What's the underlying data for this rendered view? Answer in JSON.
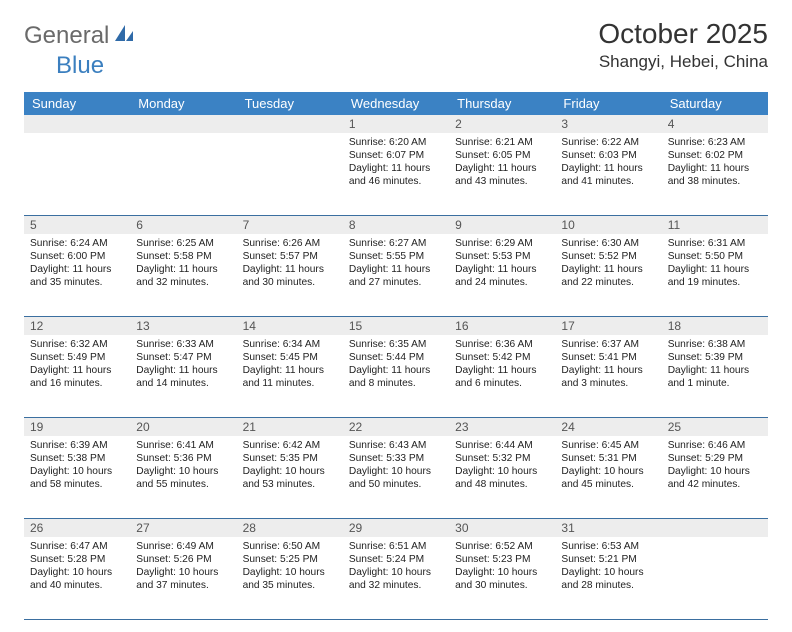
{
  "logo": {
    "part1": "General",
    "part2": "Blue"
  },
  "title": "October 2025",
  "location": "Shangyi, Hebei, China",
  "colors": {
    "header_bg": "#3b82c4",
    "header_text": "#ffffff",
    "daynum_bg": "#ededed",
    "row_border": "#3b6fa0",
    "logo_gray": "#6a6a6a",
    "logo_blue": "#3b7fbf"
  },
  "day_headers": [
    "Sunday",
    "Monday",
    "Tuesday",
    "Wednesday",
    "Thursday",
    "Friday",
    "Saturday"
  ],
  "weeks": [
    [
      {
        "n": "",
        "sr": "",
        "ss": "",
        "dl1": "",
        "dl2": ""
      },
      {
        "n": "",
        "sr": "",
        "ss": "",
        "dl1": "",
        "dl2": ""
      },
      {
        "n": "",
        "sr": "",
        "ss": "",
        "dl1": "",
        "dl2": ""
      },
      {
        "n": "1",
        "sr": "Sunrise: 6:20 AM",
        "ss": "Sunset: 6:07 PM",
        "dl1": "Daylight: 11 hours",
        "dl2": "and 46 minutes."
      },
      {
        "n": "2",
        "sr": "Sunrise: 6:21 AM",
        "ss": "Sunset: 6:05 PM",
        "dl1": "Daylight: 11 hours",
        "dl2": "and 43 minutes."
      },
      {
        "n": "3",
        "sr": "Sunrise: 6:22 AM",
        "ss": "Sunset: 6:03 PM",
        "dl1": "Daylight: 11 hours",
        "dl2": "and 41 minutes."
      },
      {
        "n": "4",
        "sr": "Sunrise: 6:23 AM",
        "ss": "Sunset: 6:02 PM",
        "dl1": "Daylight: 11 hours",
        "dl2": "and 38 minutes."
      }
    ],
    [
      {
        "n": "5",
        "sr": "Sunrise: 6:24 AM",
        "ss": "Sunset: 6:00 PM",
        "dl1": "Daylight: 11 hours",
        "dl2": "and 35 minutes."
      },
      {
        "n": "6",
        "sr": "Sunrise: 6:25 AM",
        "ss": "Sunset: 5:58 PM",
        "dl1": "Daylight: 11 hours",
        "dl2": "and 32 minutes."
      },
      {
        "n": "7",
        "sr": "Sunrise: 6:26 AM",
        "ss": "Sunset: 5:57 PM",
        "dl1": "Daylight: 11 hours",
        "dl2": "and 30 minutes."
      },
      {
        "n": "8",
        "sr": "Sunrise: 6:27 AM",
        "ss": "Sunset: 5:55 PM",
        "dl1": "Daylight: 11 hours",
        "dl2": "and 27 minutes."
      },
      {
        "n": "9",
        "sr": "Sunrise: 6:29 AM",
        "ss": "Sunset: 5:53 PM",
        "dl1": "Daylight: 11 hours",
        "dl2": "and 24 minutes."
      },
      {
        "n": "10",
        "sr": "Sunrise: 6:30 AM",
        "ss": "Sunset: 5:52 PM",
        "dl1": "Daylight: 11 hours",
        "dl2": "and 22 minutes."
      },
      {
        "n": "11",
        "sr": "Sunrise: 6:31 AM",
        "ss": "Sunset: 5:50 PM",
        "dl1": "Daylight: 11 hours",
        "dl2": "and 19 minutes."
      }
    ],
    [
      {
        "n": "12",
        "sr": "Sunrise: 6:32 AM",
        "ss": "Sunset: 5:49 PM",
        "dl1": "Daylight: 11 hours",
        "dl2": "and 16 minutes."
      },
      {
        "n": "13",
        "sr": "Sunrise: 6:33 AM",
        "ss": "Sunset: 5:47 PM",
        "dl1": "Daylight: 11 hours",
        "dl2": "and 14 minutes."
      },
      {
        "n": "14",
        "sr": "Sunrise: 6:34 AM",
        "ss": "Sunset: 5:45 PM",
        "dl1": "Daylight: 11 hours",
        "dl2": "and 11 minutes."
      },
      {
        "n": "15",
        "sr": "Sunrise: 6:35 AM",
        "ss": "Sunset: 5:44 PM",
        "dl1": "Daylight: 11 hours",
        "dl2": "and 8 minutes."
      },
      {
        "n": "16",
        "sr": "Sunrise: 6:36 AM",
        "ss": "Sunset: 5:42 PM",
        "dl1": "Daylight: 11 hours",
        "dl2": "and 6 minutes."
      },
      {
        "n": "17",
        "sr": "Sunrise: 6:37 AM",
        "ss": "Sunset: 5:41 PM",
        "dl1": "Daylight: 11 hours",
        "dl2": "and 3 minutes."
      },
      {
        "n": "18",
        "sr": "Sunrise: 6:38 AM",
        "ss": "Sunset: 5:39 PM",
        "dl1": "Daylight: 11 hours",
        "dl2": "and 1 minute."
      }
    ],
    [
      {
        "n": "19",
        "sr": "Sunrise: 6:39 AM",
        "ss": "Sunset: 5:38 PM",
        "dl1": "Daylight: 10 hours",
        "dl2": "and 58 minutes."
      },
      {
        "n": "20",
        "sr": "Sunrise: 6:41 AM",
        "ss": "Sunset: 5:36 PM",
        "dl1": "Daylight: 10 hours",
        "dl2": "and 55 minutes."
      },
      {
        "n": "21",
        "sr": "Sunrise: 6:42 AM",
        "ss": "Sunset: 5:35 PM",
        "dl1": "Daylight: 10 hours",
        "dl2": "and 53 minutes."
      },
      {
        "n": "22",
        "sr": "Sunrise: 6:43 AM",
        "ss": "Sunset: 5:33 PM",
        "dl1": "Daylight: 10 hours",
        "dl2": "and 50 minutes."
      },
      {
        "n": "23",
        "sr": "Sunrise: 6:44 AM",
        "ss": "Sunset: 5:32 PM",
        "dl1": "Daylight: 10 hours",
        "dl2": "and 48 minutes."
      },
      {
        "n": "24",
        "sr": "Sunrise: 6:45 AM",
        "ss": "Sunset: 5:31 PM",
        "dl1": "Daylight: 10 hours",
        "dl2": "and 45 minutes."
      },
      {
        "n": "25",
        "sr": "Sunrise: 6:46 AM",
        "ss": "Sunset: 5:29 PM",
        "dl1": "Daylight: 10 hours",
        "dl2": "and 42 minutes."
      }
    ],
    [
      {
        "n": "26",
        "sr": "Sunrise: 6:47 AM",
        "ss": "Sunset: 5:28 PM",
        "dl1": "Daylight: 10 hours",
        "dl2": "and 40 minutes."
      },
      {
        "n": "27",
        "sr": "Sunrise: 6:49 AM",
        "ss": "Sunset: 5:26 PM",
        "dl1": "Daylight: 10 hours",
        "dl2": "and 37 minutes."
      },
      {
        "n": "28",
        "sr": "Sunrise: 6:50 AM",
        "ss": "Sunset: 5:25 PM",
        "dl1": "Daylight: 10 hours",
        "dl2": "and 35 minutes."
      },
      {
        "n": "29",
        "sr": "Sunrise: 6:51 AM",
        "ss": "Sunset: 5:24 PM",
        "dl1": "Daylight: 10 hours",
        "dl2": "and 32 minutes."
      },
      {
        "n": "30",
        "sr": "Sunrise: 6:52 AM",
        "ss": "Sunset: 5:23 PM",
        "dl1": "Daylight: 10 hours",
        "dl2": "and 30 minutes."
      },
      {
        "n": "31",
        "sr": "Sunrise: 6:53 AM",
        "ss": "Sunset: 5:21 PM",
        "dl1": "Daylight: 10 hours",
        "dl2": "and 28 minutes."
      },
      {
        "n": "",
        "sr": "",
        "ss": "",
        "dl1": "",
        "dl2": ""
      }
    ]
  ]
}
